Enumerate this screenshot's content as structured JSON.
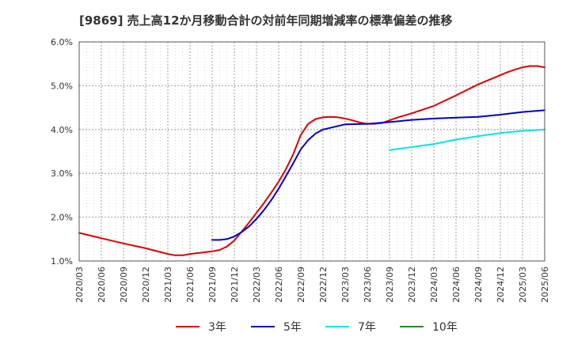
{
  "chart_data": {
    "type": "line",
    "title": "[9869]  売上高12か月移動合計の対前年同期増減率の標準偏差の推移",
    "xlabel": "",
    "ylabel": "",
    "ylim": [
      1.0,
      6.0
    ],
    "yticks": [
      "1.0%",
      "2.0%",
      "3.0%",
      "4.0%",
      "5.0%",
      "6.0%"
    ],
    "x_tick_labels": [
      "2020/03",
      "2020/06",
      "2020/09",
      "2020/12",
      "2021/03",
      "2021/06",
      "2021/09",
      "2021/12",
      "2022/03",
      "2022/06",
      "2022/09",
      "2022/12",
      "2023/03",
      "2023/06",
      "2023/09",
      "2023/12",
      "2024/03",
      "2024/06",
      "2024/09",
      "2024/12",
      "2025/03",
      "2025/06"
    ],
    "grid": true,
    "legend_position": "bottom",
    "series": [
      {
        "name": "3年",
        "color": "#dd0000",
        "points": [
          [
            "2020/03",
            1.64
          ],
          [
            "2020/06",
            1.52
          ],
          [
            "2020/09",
            1.4
          ],
          [
            "2020/12",
            1.29
          ],
          [
            "2021/03",
            1.16
          ],
          [
            "2021/04",
            1.13
          ],
          [
            "2021/05",
            1.13
          ],
          [
            "2021/06",
            1.16
          ],
          [
            "2021/09",
            1.22
          ],
          [
            "2021/10",
            1.25
          ],
          [
            "2021/11",
            1.33
          ],
          [
            "2021/12",
            1.47
          ],
          [
            "2022/01",
            1.67
          ],
          [
            "2022/02",
            1.88
          ],
          [
            "2022/03",
            2.1
          ],
          [
            "2022/04",
            2.32
          ],
          [
            "2022/05",
            2.56
          ],
          [
            "2022/06",
            2.81
          ],
          [
            "2022/07",
            3.1
          ],
          [
            "2022/08",
            3.45
          ],
          [
            "2022/09",
            3.88
          ],
          [
            "2022/10",
            4.13
          ],
          [
            "2022/11",
            4.24
          ],
          [
            "2022/12",
            4.28
          ],
          [
            "2023/01",
            4.29
          ],
          [
            "2023/02",
            4.28
          ],
          [
            "2023/03",
            4.25
          ],
          [
            "2023/04",
            4.21
          ],
          [
            "2023/05",
            4.16
          ],
          [
            "2023/06",
            4.13
          ],
          [
            "2023/07",
            4.13
          ],
          [
            "2023/08",
            4.15
          ],
          [
            "2023/09",
            4.21
          ],
          [
            "2023/10",
            4.27
          ],
          [
            "2023/11",
            4.32
          ],
          [
            "2023/12",
            4.37
          ],
          [
            "2024/03",
            4.54
          ],
          [
            "2024/06",
            4.78
          ],
          [
            "2024/09",
            5.03
          ],
          [
            "2024/12",
            5.24
          ],
          [
            "2025/01",
            5.31
          ],
          [
            "2025/02",
            5.37
          ],
          [
            "2025/03",
            5.42
          ],
          [
            "2025/04",
            5.45
          ],
          [
            "2025/05",
            5.45
          ],
          [
            "2025/06",
            5.42
          ]
        ]
      },
      {
        "name": "5年",
        "color": "#0000cc",
        "points": [
          [
            "2021/09",
            1.48
          ],
          [
            "2021/10",
            1.48
          ],
          [
            "2021/11",
            1.5
          ],
          [
            "2021/12",
            1.56
          ],
          [
            "2022/01",
            1.66
          ],
          [
            "2022/02",
            1.79
          ],
          [
            "2022/03",
            1.96
          ],
          [
            "2022/04",
            2.16
          ],
          [
            "2022/05",
            2.39
          ],
          [
            "2022/06",
            2.65
          ],
          [
            "2022/07",
            2.94
          ],
          [
            "2022/08",
            3.24
          ],
          [
            "2022/09",
            3.55
          ],
          [
            "2022/10",
            3.76
          ],
          [
            "2022/11",
            3.91
          ],
          [
            "2022/12",
            4.0
          ],
          [
            "2023/03",
            4.12
          ],
          [
            "2023/06",
            4.13
          ],
          [
            "2023/09",
            4.17
          ],
          [
            "2023/12",
            4.22
          ],
          [
            "2024/03",
            4.25
          ],
          [
            "2024/06",
            4.27
          ],
          [
            "2024/09",
            4.29
          ],
          [
            "2024/12",
            4.34
          ],
          [
            "2025/03",
            4.4
          ],
          [
            "2025/06",
            4.44
          ]
        ]
      },
      {
        "name": "7年",
        "color": "#00e5ee",
        "points": [
          [
            "2023/09",
            3.53
          ],
          [
            "2023/12",
            3.6
          ],
          [
            "2024/03",
            3.67
          ],
          [
            "2024/06",
            3.77
          ],
          [
            "2024/09",
            3.85
          ],
          [
            "2024/12",
            3.92
          ],
          [
            "2025/03",
            3.97
          ],
          [
            "2025/06",
            4.0
          ]
        ]
      },
      {
        "name": "10年",
        "color": "#228b22",
        "points": []
      }
    ]
  }
}
